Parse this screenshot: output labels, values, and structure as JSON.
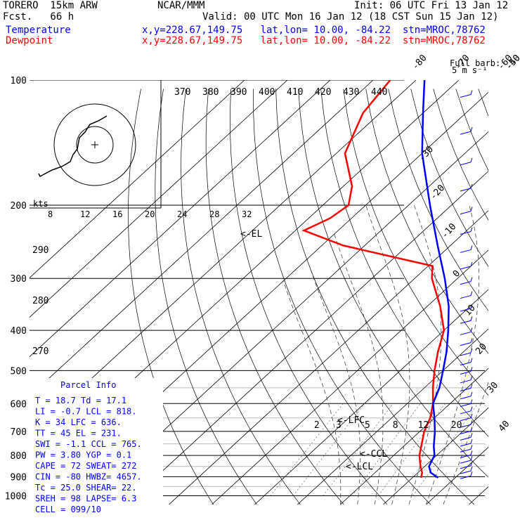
{
  "header": {
    "model_line": "TORERO  15km ARW",
    "fcst_line": "Fcst.   66 h",
    "center": "NCAR/MMM",
    "init": "Init: 06 UTC Fri 13 Jan 12",
    "valid": "Valid: 00 UTC Mon 16 Jan 12 (18 CST Sun 15 Jan 12)",
    "temp_label": "Temperature",
    "dew_label": "Dewpoint",
    "temp_info": "x,y=228.67,149.75   lat,lon= 10.00, -84.22  stn=MROC,78762",
    "dew_info": "x,y=228.67,149.75   lat,lon= 10.00, -84.22  stn=MROC,78762"
  },
  "barb_legend": {
    "line1": "Full barb:",
    "line2": "5 m s⁻¹"
  },
  "hodograph": {
    "units": "kts",
    "speeds": [
      "8",
      "12",
      "16",
      "20",
      "24",
      "28",
      "32"
    ]
  },
  "colors": {
    "temperature": "#0000ff",
    "dewpoint": "#ff0000",
    "grid": "#000000",
    "moist": "#444444"
  },
  "parcel_info": {
    "title": "Parcel Info",
    "rows": [
      "T  =   18.7  Td =  17.1",
      "LI =   -0.7  LCL =  818.",
      "K  =     34  LFC =  636.",
      "TT =     45  EL  =  231.",
      "SWI =  -1.1  CCL =  765.",
      "PW =   3.80  YGP =   0.1",
      "CAPE =   72  SWEAT=  272",
      "CIN  =  -80  HWBZ= 4657.",
      "Tc  =  25.0  SHEAR=  22.",
      "SREH =   98  LAPSE=  6.3",
      "CELL = 099/10"
    ]
  },
  "chart_data": {
    "type": "skew-t",
    "pressure_axis": {
      "ticks": [
        100,
        200,
        300,
        400,
        500,
        600,
        700,
        800,
        900,
        1000
      ],
      "scale": "log"
    },
    "isotherm_labels": [
      "-80",
      "-70",
      "-60",
      "-50",
      "-40",
      "-30",
      "-20",
      "-10",
      "0",
      "10",
      "20",
      "30",
      "40"
    ],
    "theta_labels": [
      "370",
      "380",
      "390",
      "400",
      "410",
      "420",
      "430",
      "440"
    ],
    "theta_left_labels": [
      "290",
      "280",
      "270"
    ],
    "mixing_ratio_labels": [
      "2",
      "3",
      "5",
      "8",
      "12",
      "20"
    ],
    "annotations": [
      "<-EL",
      "<-LFC",
      "<-CCL",
      "<-LCL"
    ],
    "series": [
      {
        "name": "Temperature",
        "pressure": [
          905,
          880,
          850,
          800,
          760,
          700,
          650,
          600,
          550,
          500,
          450,
          400,
          350,
          300,
          250,
          200,
          150,
          120,
          100
        ],
        "values": [
          26,
          23,
          21,
          19.5,
          17,
          13.5,
          10,
          6,
          3.5,
          0,
          -4,
          -9,
          -15,
          -23,
          -33,
          -45,
          -60,
          -70,
          -78
        ]
      },
      {
        "name": "Dewpoint",
        "pressure": [
          905,
          880,
          850,
          800,
          700,
          650,
          600,
          550,
          500,
          450,
          400,
          350,
          300,
          280,
          250,
          230,
          215,
          200,
          180,
          150,
          120,
          100
        ],
        "values": [
          22,
          21,
          19,
          16,
          11,
          9,
          6,
          2,
          -2,
          -6,
          -10,
          -17,
          -26,
          -29,
          -55,
          -68,
          -65,
          -64,
          -68,
          -78,
          -84,
          -86
        ]
      }
    ]
  }
}
